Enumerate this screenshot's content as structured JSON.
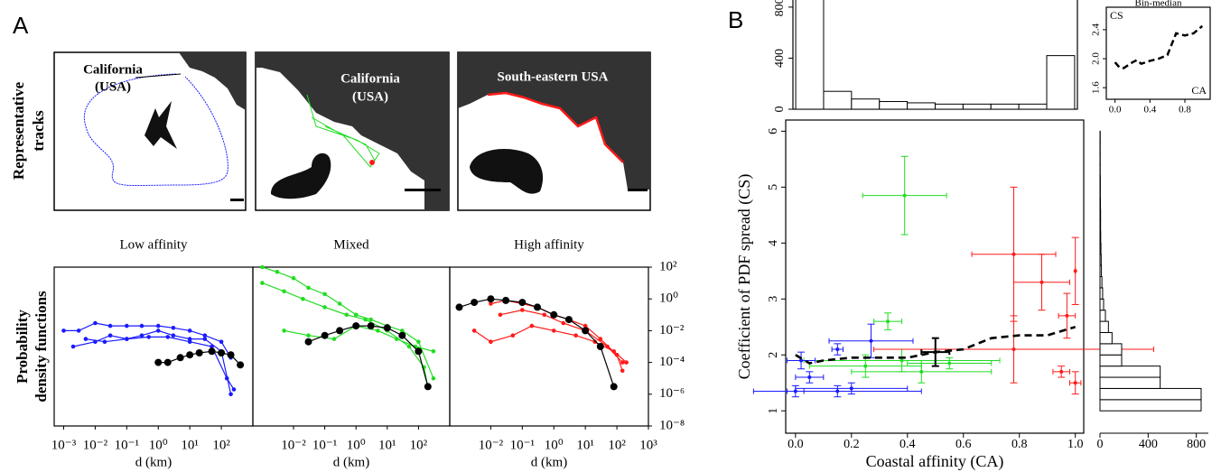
{
  "panel_labels": [
    "A",
    "B"
  ],
  "tracks": {
    "row_label": [
      "Representative",
      "tracks"
    ],
    "maps": [
      [
        "California",
        "(USA)"
      ],
      [
        "California",
        "(USA)"
      ],
      [
        "South-eastern USA"
      ]
    ]
  },
  "chart_data": [
    {
      "type": "line",
      "title": "Low affinity",
      "xlabel": "d (km)",
      "ylabel": [
        "Probability",
        "density functions"
      ],
      "xscale": "log",
      "yscale": "log",
      "xlim": [
        0.0005,
        1000
      ],
      "ylim": [
        1e-08,
        100
      ],
      "marker": true,
      "xticks": [
        {
          "value": 0.001,
          "label": "10⁻³"
        },
        {
          "value": 0.01,
          "label": "10⁻²"
        },
        {
          "value": 0.1,
          "label": "10⁻¹"
        },
        {
          "value": 1,
          "label": "10⁰"
        },
        {
          "value": 10,
          "label": "10¹"
        },
        {
          "value": 100,
          "label": "10²"
        }
      ],
      "series": [
        {
          "color": "#1a1aff",
          "x": [
            0.001,
            0.003,
            0.01,
            0.03,
            0.1,
            0.3,
            1,
            3,
            10,
            30,
            100,
            200
          ],
          "values": [
            0.01,
            0.01,
            0.03,
            0.02,
            0.02,
            0.02,
            0.02,
            0.015,
            0.01,
            0.005,
            0.002,
            0.0002
          ]
        },
        {
          "color": "#1a1aff",
          "x": [
            0.002,
            0.01,
            0.03,
            0.1,
            0.3,
            1,
            3,
            10,
            30,
            100,
            200
          ],
          "values": [
            0.001,
            0.002,
            0.005,
            0.003,
            0.005,
            0.01,
            0.005,
            0.003,
            0.003,
            0.0005,
            1e-06
          ]
        },
        {
          "color": "#1a1aff",
          "x": [
            0.005,
            0.02,
            0.1,
            0.5,
            2,
            10,
            50,
            150,
            250
          ],
          "values": [
            0.003,
            0.002,
            0.003,
            0.004,
            0.004,
            0.002,
            0.001,
            1e-05,
            2e-06
          ]
        },
        {
          "color": "#000000",
          "x": [
            1,
            2,
            5,
            10,
            20,
            50,
            100,
            200,
            400
          ],
          "values": [
            0.0001,
            0.0001,
            0.0002,
            0.0003,
            0.0004,
            0.0005,
            0.0004,
            0.0003,
            7e-05
          ]
        }
      ]
    },
    {
      "type": "line",
      "title": "Mixed",
      "xlabel": "d (km)",
      "xscale": "log",
      "yscale": "log",
      "xlim": [
        0.0005,
        1000
      ],
      "ylim": [
        1e-08,
        100
      ],
      "marker": true,
      "xticks": [
        {
          "value": 0.01,
          "label": "10⁻²"
        },
        {
          "value": 0.1,
          "label": "10⁻¹"
        },
        {
          "value": 1,
          "label": "10⁰"
        },
        {
          "value": 10,
          "label": "10¹"
        },
        {
          "value": 100,
          "label": "10²"
        }
      ],
      "series": [
        {
          "color": "#22dd22",
          "x": [
            0.001,
            0.003,
            0.01,
            0.03,
            0.1,
            0.3,
            1,
            3,
            10,
            30,
            100,
            300
          ],
          "values": [
            100,
            50,
            20,
            5,
            2,
            0.5,
            0.1,
            0.05,
            0.02,
            0.01,
            0.002,
            1e-05
          ]
        },
        {
          "color": "#22dd22",
          "x": [
            0.001,
            0.005,
            0.02,
            0.1,
            0.5,
            2,
            10,
            50,
            150,
            200
          ],
          "values": [
            10,
            3,
            1,
            0.3,
            0.1,
            0.05,
            0.01,
            0.001,
            5e-05,
            3e-06
          ]
        },
        {
          "color": "#22dd22",
          "x": [
            0.005,
            0.03,
            0.2,
            1,
            5,
            20,
            80,
            300
          ],
          "values": [
            0.01,
            0.005,
            0.003,
            0.02,
            0.01,
            0.003,
            0.001,
            0.0005
          ]
        },
        {
          "color": "#000000",
          "x": [
            0.03,
            0.1,
            0.3,
            1,
            3,
            10,
            30,
            100,
            200
          ],
          "values": [
            0.002,
            0.005,
            0.01,
            0.02,
            0.02,
            0.015,
            0.005,
            0.0005,
            3e-06
          ]
        }
      ]
    },
    {
      "type": "line",
      "title": "High affinity",
      "xlabel": "d (km)",
      "xscale": "log",
      "yscale": "log",
      "xlim": [
        0.0005,
        1000
      ],
      "ylim": [
        1e-08,
        100
      ],
      "marker": true,
      "xticks": [
        {
          "value": 0.01,
          "label": "10⁻²"
        },
        {
          "value": 0.1,
          "label": "10⁻¹"
        },
        {
          "value": 1,
          "label": "10⁰"
        },
        {
          "value": 10,
          "label": "10¹"
        },
        {
          "value": 100,
          "label": "10²"
        },
        {
          "value": 1000,
          "label": "10³"
        }
      ],
      "yticks": [
        {
          "value": 100,
          "label": "10²"
        },
        {
          "value": 1,
          "label": "10⁰"
        },
        {
          "value": 0.01,
          "label": "10⁻²"
        },
        {
          "value": 0.0001,
          "label": "10⁻⁴"
        },
        {
          "value": 1e-06,
          "label": "10⁻⁶"
        },
        {
          "value": 1e-08,
          "label": "10⁻⁸"
        }
      ],
      "series": [
        {
          "color": "#ff1a1a",
          "x": [
            0.01,
            0.03,
            0.1,
            0.3,
            1,
            3,
            10,
            30,
            100,
            150
          ],
          "values": [
            0.5,
            0.8,
            0.5,
            0.3,
            0.1,
            0.05,
            0.02,
            0.003,
            0.0003,
            3e-05
          ]
        },
        {
          "color": "#ff1a1a",
          "x": [
            0.003,
            0.01,
            0.05,
            0.2,
            1,
            5,
            20,
            80,
            200
          ],
          "values": [
            0.01,
            0.002,
            0.005,
            0.02,
            0.01,
            0.005,
            0.002,
            0.0005,
            0.0001
          ]
        },
        {
          "color": "#ff1a1a",
          "x": [
            0.02,
            0.1,
            0.5,
            2,
            10,
            50,
            150
          ],
          "values": [
            0.1,
            0.2,
            0.1,
            0.03,
            0.01,
            0.001,
            0.0001
          ]
        },
        {
          "color": "#000000",
          "x": [
            0.001,
            0.003,
            0.01,
            0.03,
            0.1,
            0.3,
            1,
            3,
            10,
            30,
            80
          ],
          "values": [
            0.3,
            0.6,
            1,
            0.8,
            0.6,
            0.3,
            0.1,
            0.05,
            0.01,
            0.001,
            3e-06
          ]
        }
      ]
    },
    {
      "type": "scatter",
      "xlabel": "Coastal affinity (CA)",
      "ylabel": "Coefficient of PDF spread (CS)",
      "xlim": [
        -0.035,
        1.03
      ],
      "ylim": [
        0.6,
        6.2
      ],
      "xticks": [
        {
          "value": 0,
          "label": "0.0"
        },
        {
          "value": 0.2,
          "label": "0.2"
        },
        {
          "value": 0.4,
          "label": "0.4"
        },
        {
          "value": 0.6,
          "label": "0.6"
        },
        {
          "value": 0.8,
          "label": "0.8"
        },
        {
          "value": 1,
          "label": "1.0"
        }
      ],
      "yticks": [
        1,
        2,
        3,
        4,
        5,
        6
      ],
      "series": [
        {
          "color": "#22dd22",
          "x": [
            0.39,
            0.33,
            0.38,
            0.45,
            0.25,
            0.55
          ],
          "values": [
            4.85,
            2.6,
            1.9,
            1.7,
            1.8,
            1.85
          ],
          "xerr": [
            0.15,
            0.05,
            0.35,
            0.25,
            0.2,
            0.15
          ],
          "yerr": [
            0.7,
            0.15,
            0.2,
            0.2,
            0.2,
            0.1
          ]
        },
        {
          "color": "#1a1aff",
          "x": [
            0.27,
            0.15,
            0.02,
            0.05,
            0.2,
            0.15,
            0.0
          ],
          "values": [
            2.25,
            2.1,
            1.9,
            1.6,
            1.4,
            1.35,
            1.35
          ],
          "xerr": [
            0.15,
            0.02,
            0.05,
            0.05,
            0.2,
            0.3,
            0.03
          ],
          "yerr": [
            0.3,
            0.1,
            0.15,
            0.1,
            0.1,
            0.1,
            0.1
          ]
        },
        {
          "color": "#ff1a1a",
          "x": [
            0.78,
            0.88,
            0.78,
            0.97,
            1.0,
            0.95,
            1.0
          ],
          "values": [
            3.8,
            3.3,
            2.1,
            2.7,
            3.5,
            1.7,
            1.5
          ],
          "xerr": [
            0.15,
            0.1,
            0.5,
            0.03,
            0.0,
            0.03,
            0.02
          ],
          "yerr": [
            1.2,
            0.5,
            0.6,
            0.4,
            0.6,
            0.1,
            0.2
          ]
        },
        {
          "color": "#000000",
          "x": [
            0.5
          ],
          "values": [
            2.05
          ],
          "xerr": [
            0.05
          ],
          "yerr": [
            0.25
          ]
        }
      ],
      "trend": {
        "color": "#000000",
        "x": [
          0,
          0.05,
          0.1,
          0.2,
          0.3,
          0.4,
          0.5,
          0.6,
          0.7,
          0.8,
          0.9,
          1.0
        ],
        "values": [
          2.0,
          1.85,
          1.9,
          1.95,
          1.95,
          1.95,
          2.05,
          2.1,
          2.3,
          2.35,
          2.35,
          2.5
        ]
      }
    },
    {
      "type": "histogram",
      "orientation": "vertical",
      "xlim": [
        -0.01,
        1.01
      ],
      "ylim": [
        0,
        870
      ],
      "yticks": [
        0,
        400,
        800
      ],
      "bins": [
        0,
        0.1,
        0.2,
        0.3,
        0.4,
        0.5,
        0.6,
        0.7,
        0.8,
        0.9,
        1
      ],
      "counts": [
        950,
        140,
        80,
        60,
        50,
        40,
        40,
        40,
        40,
        420
      ]
    },
    {
      "type": "histogram",
      "orientation": "horizontal",
      "ylim": [
        0.6,
        6.2
      ],
      "xlim": [
        0,
        900
      ],
      "xticks": [
        0,
        400,
        800
      ],
      "bins": [
        1,
        1.2,
        1.4,
        1.6,
        1.8,
        2,
        2.2,
        2.4,
        2.6,
        2.8,
        3,
        3.2,
        3.4,
        3.6,
        3.8,
        4,
        4.2,
        4.4,
        4.6,
        4.8,
        5,
        5.2,
        5.4,
        5.6,
        5.8,
        6
      ],
      "counts": [
        840,
        840,
        500,
        500,
        180,
        180,
        100,
        70,
        45,
        30,
        22,
        16,
        12,
        10,
        8,
        6,
        5,
        5,
        4,
        3,
        3,
        2,
        2,
        2,
        2
      ]
    },
    {
      "type": "line",
      "title": "Bin-median",
      "xlabel": "CA",
      "ylabel": "CS",
      "xlim": [
        -0.1,
        1.09
      ],
      "ylim": [
        1.44,
        2.71
      ],
      "linestyle": "dashed",
      "xticks": [
        {
          "value": 0,
          "label": "0.0"
        },
        {
          "value": 0.4,
          "label": "0.4"
        },
        {
          "value": 0.8,
          "label": "0.8"
        }
      ],
      "yticks": [
        {
          "value": 1.6,
          "label": "1.6"
        },
        {
          "value": 2,
          "label": "2.0"
        },
        {
          "value": 2.4,
          "label": "2.4"
        }
      ],
      "series": [
        {
          "color": "#000000",
          "x": [
            0,
            0.05,
            0.1,
            0.2,
            0.25,
            0.3,
            0.4,
            0.5,
            0.6,
            0.65,
            0.7,
            0.8,
            0.9,
            1.0
          ],
          "values": [
            1.95,
            1.88,
            1.87,
            1.95,
            1.98,
            1.93,
            1.97,
            2.0,
            2.05,
            2.2,
            2.35,
            2.32,
            2.35,
            2.45
          ]
        }
      ]
    }
  ]
}
